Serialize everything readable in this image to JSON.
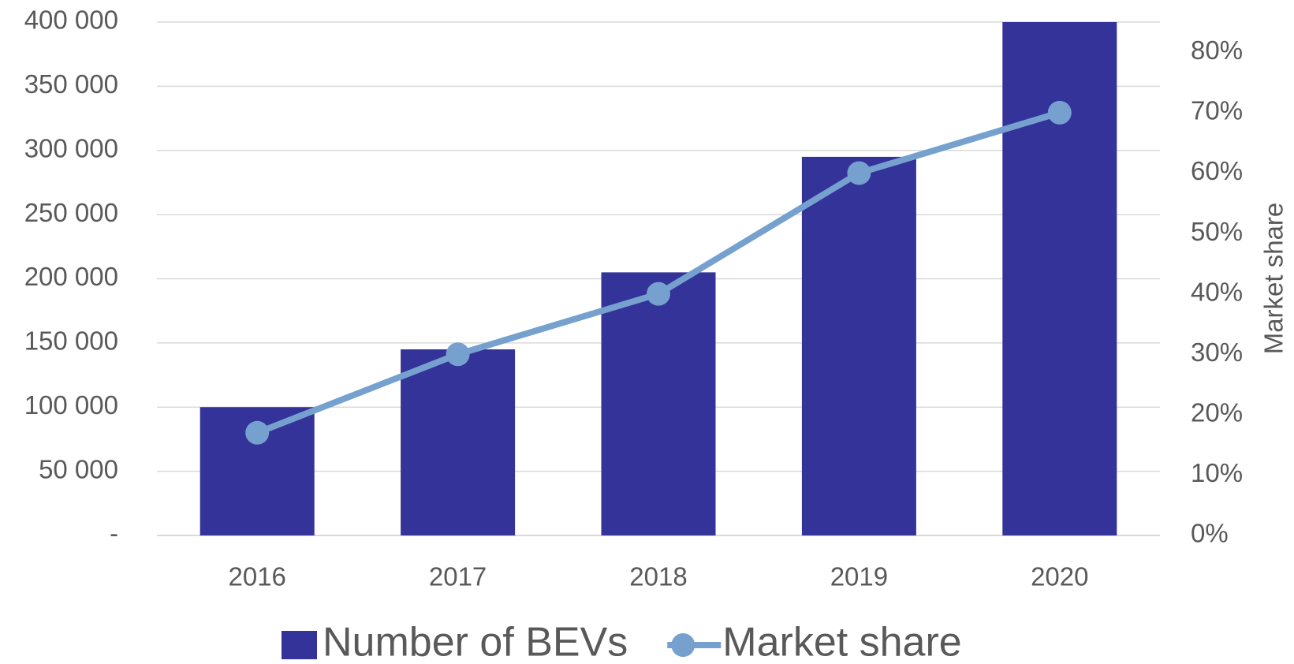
{
  "chart_data": {
    "type": "bar",
    "categories": [
      "2016",
      "2017",
      "2018",
      "2019",
      "2020"
    ],
    "series": [
      {
        "name": "Number of BEVs",
        "type": "bar",
        "color": "#343399",
        "values": [
          100000,
          145000,
          205000,
          295000,
          400000
        ]
      },
      {
        "name": "Market share",
        "type": "line",
        "axis": "y2",
        "color": "#76a1cf",
        "values": [
          17,
          30,
          40,
          60,
          70
        ]
      }
    ],
    "ylim": [
      0,
      400000
    ],
    "yticks": [
      {
        "value": 0,
        "label": "-"
      },
      {
        "value": 50000,
        "label": "50 000"
      },
      {
        "value": 100000,
        "label": "100 000"
      },
      {
        "value": 150000,
        "label": "150 000"
      },
      {
        "value": 200000,
        "label": "200 000"
      },
      {
        "value": 250000,
        "label": "250 000"
      },
      {
        "value": 300000,
        "label": "300 000"
      },
      {
        "value": 350000,
        "label": "350 000"
      },
      {
        "value": 400000,
        "label": "400 000"
      }
    ],
    "y2lim": [
      0,
      85
    ],
    "y2ticks": [
      {
        "value": 0,
        "label": "0%"
      },
      {
        "value": 10,
        "label": "10%"
      },
      {
        "value": 20,
        "label": "20%"
      },
      {
        "value": 30,
        "label": "30%"
      },
      {
        "value": 40,
        "label": "40%"
      },
      {
        "value": 50,
        "label": "50%"
      },
      {
        "value": 60,
        "label": "60%"
      },
      {
        "value": 70,
        "label": "70%"
      },
      {
        "value": 80,
        "label": "80%"
      }
    ],
    "y2label": "Market share",
    "grid": true,
    "legend": "bottom"
  }
}
